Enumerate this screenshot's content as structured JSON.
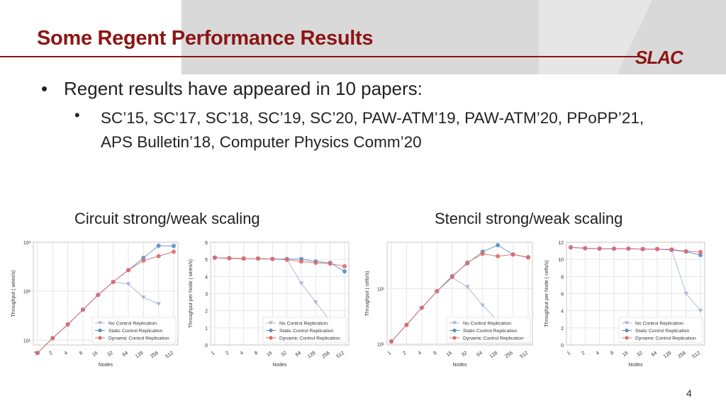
{
  "slide": {
    "title": "Some Regent Performance Results",
    "logo": "SLAC",
    "bullet1": "Regent results have appeared in 10 papers:",
    "bullet2": "SC’15, SC’17, SC’18, SC’19, SC’20, PAW-ATM’19, PAW-ATM’20, PPoPP’21, APS Bulletin’18, Computer Physics Comm’20",
    "circuit_label": "Circuit strong/weak scaling",
    "stencil_label": "Stencil strong/weak scaling",
    "page_number": "4",
    "accent_color": "#8c1515"
  },
  "chart_data": [
    {
      "type": "line",
      "log_y": true,
      "xlabel": "Nodes",
      "ylabel": "Throughput (      wires/s)",
      "categories": [
        "1",
        "2",
        "4",
        "8",
        "16",
        "32",
        "64",
        "128",
        "256",
        "512"
      ],
      "y_ticks": [
        "10¹",
        "10²",
        "10³"
      ],
      "ylim": [
        8,
        1000
      ],
      "legend": "bottom-right",
      "series": [
        {
          "name": "No Control Replication",
          "color": "#a9b4d4",
          "marker": "triangle",
          "values": [
            5.5,
            11,
            21,
            42,
            84,
            155,
            140,
            75,
            55,
            null
          ]
        },
        {
          "name": "Static Control Replication",
          "color": "#5b8fc4",
          "marker": "circle",
          "values": [
            5.5,
            11,
            21,
            42,
            84,
            155,
            270,
            480,
            850,
            840
          ]
        },
        {
          "name": "Dynamic Control Replication",
          "color": "#e06a6a",
          "marker": "circle",
          "values": [
            5.5,
            11,
            21,
            42,
            84,
            155,
            270,
            420,
            520,
            640
          ]
        }
      ]
    },
    {
      "type": "line",
      "log_y": false,
      "xlabel": "Nodes",
      "ylabel": "Throughput per Node (      wires/s)",
      "categories": [
        "1",
        "2",
        "4",
        "8",
        "16",
        "32",
        "64",
        "128",
        "256",
        "512"
      ],
      "y_ticks": [
        "0",
        "1",
        "2",
        "3",
        "4",
        "5",
        "6"
      ],
      "ylim": [
        0,
        6
      ],
      "legend": "bottom-right",
      "series": [
        {
          "name": "No Control Replication",
          "color": "#a9b4d4",
          "marker": "triangle",
          "values": [
            5.1,
            5.07,
            5.05,
            5.05,
            5.02,
            5.0,
            3.6,
            2.5,
            1.4,
            null
          ]
        },
        {
          "name": "Static Control Replication",
          "color": "#5b8fc4",
          "marker": "circle",
          "values": [
            5.1,
            5.07,
            5.05,
            5.05,
            5.02,
            5.02,
            5.02,
            4.88,
            4.8,
            4.3
          ]
        },
        {
          "name": "Dynamic Control Replication",
          "color": "#e06a6a",
          "marker": "circle",
          "values": [
            5.1,
            5.07,
            5.05,
            5.05,
            5.02,
            4.98,
            4.88,
            4.8,
            4.75,
            4.6
          ]
        }
      ]
    },
    {
      "type": "line",
      "log_y": true,
      "xlabel": "Nodes",
      "ylabel": "Throughput (      cells/s)",
      "categories": [
        "1",
        "2",
        "4",
        "8",
        "16",
        "32",
        "64",
        "128",
        "256",
        "512"
      ],
      "y_ticks": [
        "10¹",
        "10²"
      ],
      "ylim": [
        9.5,
        700
      ],
      "legend": "bottom-right",
      "series": [
        {
          "name": "No Control Replication",
          "color": "#a9b4d4",
          "marker": "triangle",
          "values": [
            11,
            22,
            45,
            90,
            160,
            108,
            50,
            26,
            null,
            null
          ]
        },
        {
          "name": "Static Control Replication",
          "color": "#5b8fc4",
          "marker": "circle",
          "values": [
            11,
            22,
            45,
            90,
            170,
            290,
            470,
            620,
            420,
            375
          ]
        },
        {
          "name": "Dynamic Control Replication",
          "color": "#e06a6a",
          "marker": "circle",
          "values": [
            11,
            22,
            45,
            90,
            165,
            300,
            430,
            390,
            420,
            370
          ]
        }
      ]
    },
    {
      "type": "line",
      "log_y": false,
      "xlabel": "Nodes",
      "ylabel": "Throughput per Node (      cells/s)",
      "categories": [
        "1",
        "2",
        "4",
        "8",
        "16",
        "32",
        "64",
        "128",
        "256",
        "512"
      ],
      "y_ticks": [
        "0",
        "2",
        "4",
        "6",
        "8",
        "10",
        "12"
      ],
      "ylim": [
        0,
        12
      ],
      "legend": "bottom-right",
      "series": [
        {
          "name": "No Control Replication",
          "color": "#a9b4d4",
          "marker": "triangle",
          "values": [
            11.4,
            11.3,
            11.25,
            11.25,
            11.25,
            11.2,
            11.2,
            11.1,
            6.0,
            4.0
          ]
        },
        {
          "name": "Static Control Replication",
          "color": "#5b8fc4",
          "marker": "circle",
          "values": [
            11.4,
            11.3,
            11.25,
            11.25,
            11.25,
            11.2,
            11.2,
            11.1,
            10.9,
            10.5
          ]
        },
        {
          "name": "Dynamic Control Replication",
          "color": "#e06a6a",
          "marker": "circle",
          "values": [
            11.4,
            11.3,
            11.25,
            11.25,
            11.25,
            11.2,
            11.2,
            11.15,
            10.95,
            10.85
          ]
        }
      ]
    }
  ]
}
